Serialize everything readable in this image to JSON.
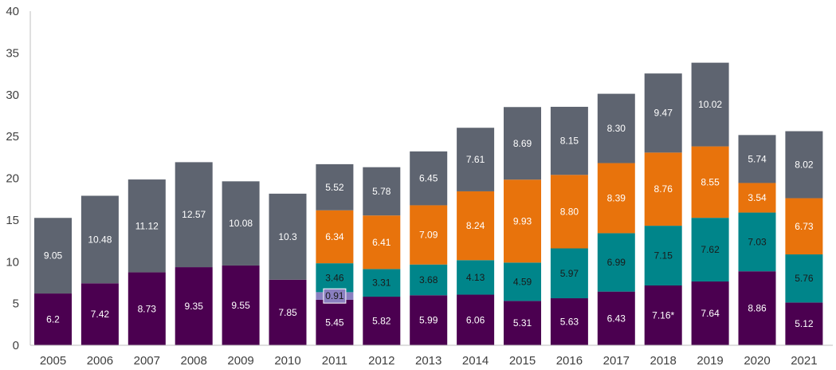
{
  "chart_data": {
    "type": "bar",
    "stacked": true,
    "title": "",
    "xlabel": "",
    "ylabel": "",
    "ylim": [
      0,
      40
    ],
    "yticks": [
      0,
      5,
      10,
      15,
      20,
      25,
      30,
      35,
      40
    ],
    "grid": false,
    "legend": "none",
    "categories": [
      "2005",
      "2006",
      "2007",
      "2008",
      "2009",
      "2010",
      "2011",
      "2012",
      "2013",
      "2014",
      "2015",
      "2016",
      "2017",
      "2018",
      "2019",
      "2020",
      "2021"
    ],
    "series": [
      {
        "name": "series-1",
        "color": "#4b0050",
        "label_color": "#ffffff",
        "values": [
          6.2,
          7.42,
          8.73,
          9.35,
          9.55,
          7.85,
          5.45,
          5.82,
          5.99,
          6.06,
          5.31,
          5.63,
          6.43,
          7.16,
          7.64,
          8.86,
          5.12
        ],
        "labels": [
          "6.2",
          "7.42",
          "8.73",
          "9.35",
          "9.55",
          "7.85",
          "5.45",
          "5.82",
          "5.99",
          "6.06",
          "5.31",
          "5.63",
          "6.43",
          "7.16*",
          "7.64",
          "8.86",
          "5.12"
        ]
      },
      {
        "name": "series-2",
        "color": "#8a7fc0",
        "label_color": "#ffffff",
        "values": [
          null,
          null,
          null,
          null,
          null,
          null,
          0.91,
          null,
          null,
          null,
          null,
          null,
          null,
          null,
          null,
          null,
          null
        ],
        "labels": [
          "",
          "",
          "",
          "",
          "",
          "",
          "0.91",
          "",
          "",
          "",
          "",
          "",
          "",
          "",
          "",
          "",
          ""
        ]
      },
      {
        "name": "series-3",
        "color": "#00858a",
        "label_color": "#1a1a1a",
        "values": [
          null,
          null,
          null,
          null,
          null,
          null,
          3.46,
          3.31,
          3.68,
          4.13,
          4.59,
          5.97,
          6.99,
          7.15,
          7.62,
          7.03,
          5.76
        ],
        "labels": [
          "",
          "",
          "",
          "",
          "",
          "",
          "3.46",
          "3.31",
          "3.68",
          "4.13",
          "4.59",
          "5.97",
          "6.99",
          "7.15",
          "7.62",
          "7.03",
          "5.76"
        ]
      },
      {
        "name": "series-4",
        "color": "#e8730c",
        "label_color": "#ffffff",
        "values": [
          null,
          null,
          null,
          null,
          null,
          null,
          6.34,
          6.41,
          7.09,
          8.24,
          9.93,
          8.8,
          8.39,
          8.76,
          8.55,
          3.54,
          6.73
        ],
        "labels": [
          "",
          "",
          "",
          "",
          "",
          "",
          "6.34",
          "6.41",
          "7.09",
          "8.24",
          "9.93",
          "8.80",
          "8.39",
          "8.76",
          "8.55",
          "3.54",
          "6.73"
        ]
      },
      {
        "name": "series-5",
        "color": "#5e6470",
        "label_color": "#ffffff",
        "values": [
          9.05,
          10.48,
          11.12,
          12.57,
          10.08,
          10.3,
          5.52,
          5.78,
          6.45,
          7.61,
          8.69,
          8.15,
          8.3,
          9.47,
          10.02,
          5.74,
          8.02
        ],
        "labels": [
          "9.05",
          "10.48",
          "11.12",
          "12.57",
          "10.08",
          "10.3",
          "5.52",
          "5.78",
          "6.45",
          "7.61",
          "8.69",
          "8.15",
          "8.30",
          "9.47",
          "10.02",
          "5.74",
          "8.02"
        ]
      }
    ]
  }
}
